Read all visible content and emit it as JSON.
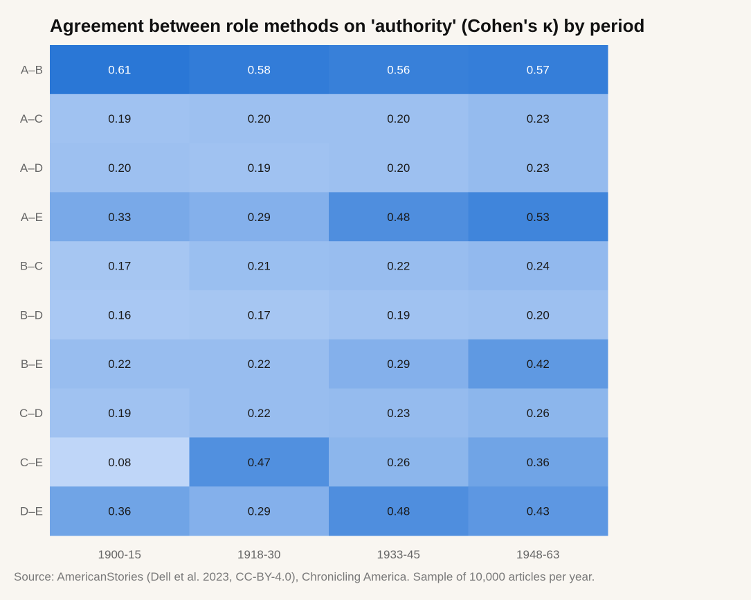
{
  "chart_data": {
    "type": "heatmap",
    "title": "Agreement between role methods on 'authority' (Cohen's κ) by period",
    "rows": [
      "A–B",
      "A–C",
      "A–D",
      "A–E",
      "B–C",
      "B–D",
      "B–E",
      "C–D",
      "C–E",
      "D–E"
    ],
    "columns": [
      "1900-15",
      "1918-30",
      "1933-45",
      "1948-63"
    ],
    "values": [
      [
        0.61,
        0.58,
        0.56,
        0.57
      ],
      [
        0.19,
        0.2,
        0.2,
        0.23
      ],
      [
        0.2,
        0.19,
        0.2,
        0.23
      ],
      [
        0.33,
        0.29,
        0.48,
        0.53
      ],
      [
        0.17,
        0.21,
        0.22,
        0.24
      ],
      [
        0.16,
        0.17,
        0.19,
        0.2
      ],
      [
        0.22,
        0.22,
        0.29,
        0.42
      ],
      [
        0.19,
        0.22,
        0.23,
        0.26
      ],
      [
        0.08,
        0.47,
        0.26,
        0.36
      ],
      [
        0.36,
        0.29,
        0.48,
        0.43
      ]
    ],
    "colorscale": {
      "low": "#bfd6f8",
      "high": "#2a77d6"
    },
    "value_range": [
      0.08,
      0.61
    ]
  },
  "source": "Source: AmericanStories (Dell et al. 2023, CC-BY-4.0), Chronicling America. Sample of 10,000 articles per year."
}
